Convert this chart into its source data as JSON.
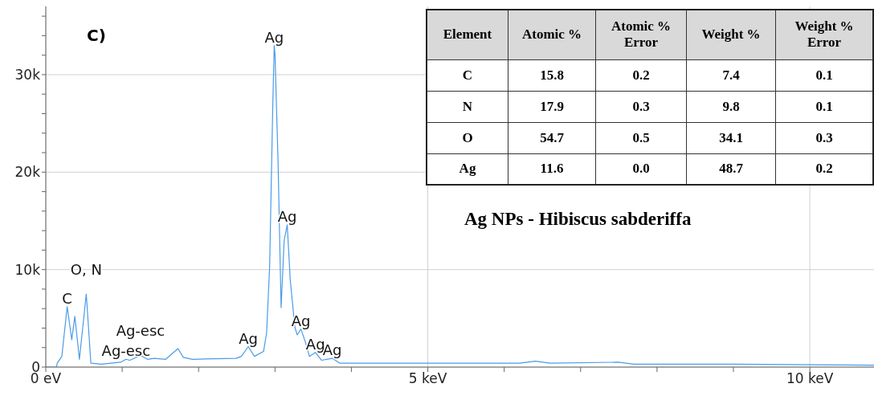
{
  "chart_data": [
    {
      "type": "line",
      "title": "Ag NPs - Hibiscus sabderiffa",
      "x": [
        0,
        0.14,
        0.15,
        0.21,
        0.28,
        0.34,
        0.38,
        0.44,
        0.53,
        0.59,
        0.73,
        0.98,
        1.05,
        1.1,
        1.24,
        1.33,
        1.42,
        1.57,
        1.73,
        1.8,
        1.92,
        2.49,
        2.56,
        2.65,
        2.73,
        2.85,
        2.89,
        2.93,
        2.97,
        2.99,
        3.0,
        3.04,
        3.08,
        3.12,
        3.16,
        3.2,
        3.26,
        3.29,
        3.34,
        3.4,
        3.45,
        3.53,
        3.61,
        3.75,
        3.85,
        5.0,
        6.2,
        6.41,
        6.6,
        7.49,
        7.7,
        9.0,
        10.84
      ],
      "series": [
        {
          "color": "#4a9be8",
          "values": [
            0,
            0,
            400,
            1100,
            6200,
            2800,
            5200,
            800,
            7500,
            400,
            300,
            500,
            800,
            700,
            1200,
            800,
            900,
            800,
            1900,
            1000,
            800,
            900,
            1100,
            2100,
            1100,
            1600,
            3500,
            10300,
            26500,
            33000,
            32100,
            21100,
            6100,
            13000,
            14600,
            8900,
            4100,
            3300,
            3900,
            2500,
            1100,
            1500,
            700,
            900,
            400,
            400,
            400,
            600,
            400,
            500,
            300,
            300,
            200
          ]
        }
      ],
      "xlim": [
        0,
        10.84
      ],
      "ylim": [
        0,
        37000
      ],
      "xticks": [
        {
          "value": 0,
          "label": "0 eV"
        },
        {
          "value": 1,
          "label": null
        },
        {
          "value": 2,
          "label": null
        },
        {
          "value": 3,
          "label": null
        },
        {
          "value": 4,
          "label": null
        },
        {
          "value": 5,
          "label": "5 keV"
        },
        {
          "value": 6,
          "label": null
        },
        {
          "value": 7,
          "label": null
        },
        {
          "value": 8,
          "label": null
        },
        {
          "value": 9,
          "label": null
        },
        {
          "value": 10,
          "label": "10 keV"
        }
      ],
      "yticks": [
        0,
        {
          "value": 2000,
          "label": null
        },
        {
          "value": 4000,
          "label": null
        },
        {
          "value": 6000,
          "label": null
        },
        {
          "value": 8000,
          "label": null
        },
        {
          "value": 10000,
          "label": "10k"
        },
        {
          "value": 12000,
          "label": null
        },
        {
          "value": 14000,
          "label": null
        },
        {
          "value": 16000,
          "label": null
        },
        {
          "value": 18000,
          "label": null
        },
        {
          "value": 20000,
          "label": "20k"
        },
        {
          "value": 22000,
          "label": null
        },
        {
          "value": 24000,
          "label": null
        },
        {
          "value": 26000,
          "label": null
        },
        {
          "value": 28000,
          "label": null
        },
        {
          "value": 30000,
          "label": "30k"
        },
        {
          "value": 32000,
          "label": null
        },
        {
          "value": 34000,
          "label": null
        },
        {
          "value": 36000,
          "label": null
        }
      ],
      "grid": true,
      "marker": "none",
      "line_style": "solid",
      "annotations": [
        "C)",
        {
          "text": "C",
          "x": 0.28,
          "y": 6200
        },
        {
          "text": "O, N",
          "x": 0.53,
          "y": 7500
        },
        {
          "text": "Ag-esc",
          "x": 1.05,
          "y": 800
        },
        {
          "text": "Ag-esc",
          "x": 1.24,
          "y": 1200
        },
        {
          "text": "Ag",
          "x": 2.65,
          "y": 2100
        },
        {
          "text": "Ag",
          "x": 2.99,
          "y": 33000
        },
        {
          "text": "Ag",
          "x": 3.16,
          "y": 14600
        },
        {
          "text": "Ag",
          "x": 3.34,
          "y": 3900
        },
        {
          "text": "Ag",
          "x": 3.53,
          "y": 1500
        },
        {
          "text": "Ag",
          "x": 3.75,
          "y": 900
        }
      ]
    },
    {
      "type": "other",
      "ylabel": "Element",
      "categories": [
        "Atomic %",
        "Atomic % Error",
        "Weight %",
        "Weight % Error"
      ],
      "y_categories": [
        "C",
        "N",
        "O",
        "Ag"
      ],
      "cell_labels": [
        [
          "15.8",
          "0.2",
          "7.4",
          "0.1"
        ],
        [
          "17.9",
          "0.3",
          "9.8",
          "0.1"
        ],
        [
          "54.7",
          "0.5",
          "34.1",
          "0.3"
        ],
        [
          "11.6",
          "0.0",
          "48.7",
          "0.2"
        ]
      ]
    }
  ]
}
